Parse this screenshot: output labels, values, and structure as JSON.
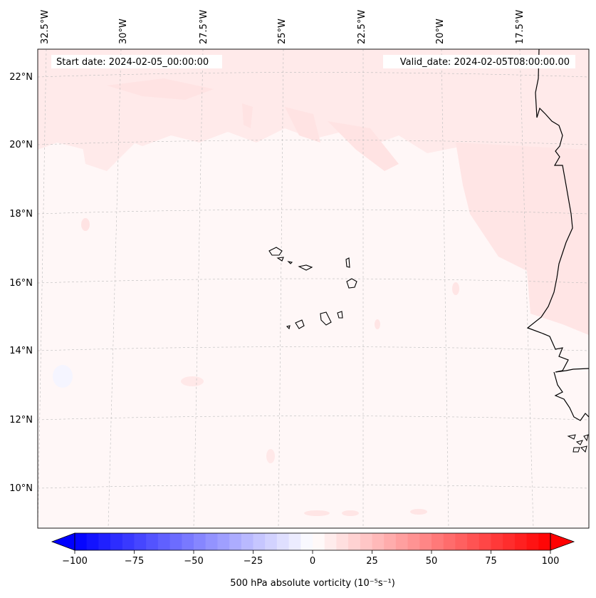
{
  "map": {
    "start_date_label": "Start date: 2024-02-05_00:00:00",
    "valid_date_label": "Valid_date: 2024-02-05T08:00:00.00",
    "lon_labels": [
      "32.5°W",
      "30°W",
      "27.5°W",
      "25°W",
      "22.5°W",
      "20°W",
      "17.5°W"
    ],
    "lat_labels": [
      "22°N",
      "20°N",
      "18°N",
      "16°N",
      "14°N",
      "12°N",
      "10°N"
    ],
    "field_color_weak": "#fff0f0",
    "field_color_positive": "#ffe2e2",
    "coastline_color": "#000000"
  },
  "colorbar": {
    "label": "500 hPa absolute vorticity (10⁻⁵s⁻¹)",
    "ticks": [
      "−100",
      "−75",
      "−50",
      "−25",
      "0",
      "25",
      "50",
      "75",
      "100"
    ],
    "range": [
      -100,
      100
    ],
    "step": 5,
    "min_color": "#0000ff",
    "max_color": "#ff0000"
  }
}
